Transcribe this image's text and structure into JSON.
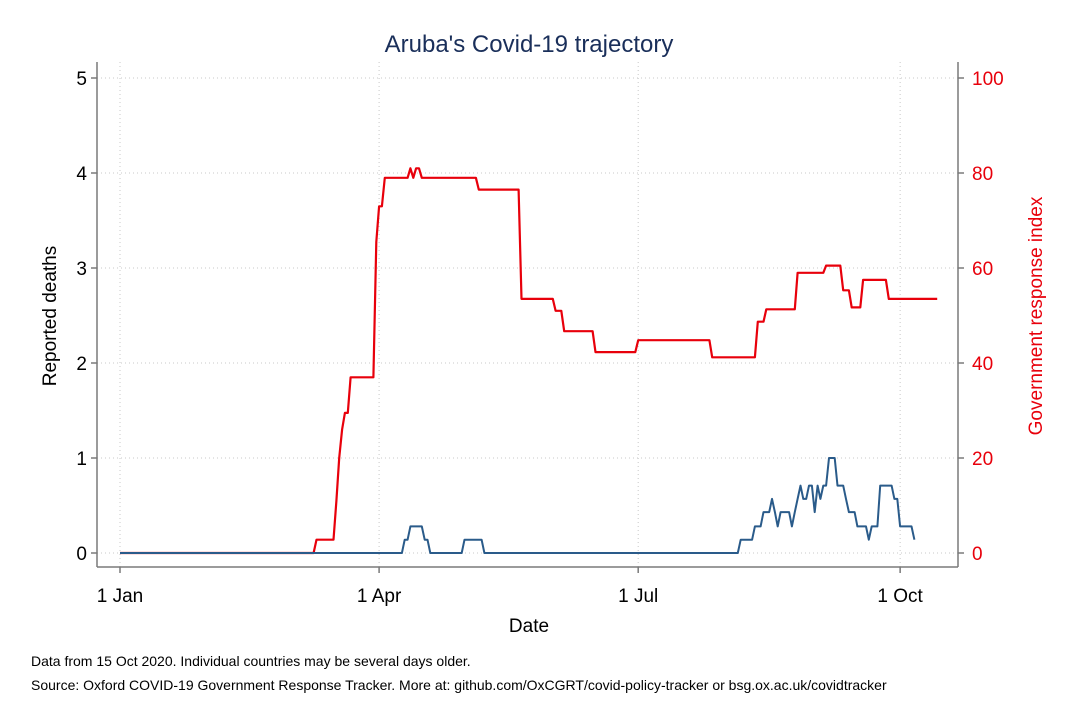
{
  "chart_data": {
    "type": "line",
    "title": "Aruba's Covid-19 trajectory",
    "xlabel": "Date",
    "ylabel": "Reported deaths",
    "y2label": "Government response index",
    "x_ticks": [
      "1 Jan",
      "1 Apr",
      "1 Jul",
      "1 Oct"
    ],
    "y_ticks": [
      "0",
      "1",
      "2",
      "3",
      "4",
      "5"
    ],
    "y2_ticks": [
      "0",
      "20",
      "40",
      "60",
      "80",
      "100"
    ],
    "xlim": [
      "2020-01-01",
      "2020-10-15"
    ],
    "ylim": [
      0,
      5
    ],
    "y2lim": [
      0,
      100
    ],
    "grid": true,
    "colors": {
      "deaths": "#2a5b8a",
      "response": "#e8000b",
      "title": "#1a2f5a"
    },
    "series": [
      {
        "axis": "right",
        "points": [
          [
            "2020-01-01",
            0
          ],
          [
            "2020-03-09",
            0
          ],
          [
            "2020-03-10",
            2.8
          ],
          [
            "2020-03-16",
            2.8
          ],
          [
            "2020-03-17",
            11
          ],
          [
            "2020-03-18",
            20
          ],
          [
            "2020-03-19",
            26
          ],
          [
            "2020-03-20",
            29.5
          ],
          [
            "2020-03-21",
            29.5
          ],
          [
            "2020-03-22",
            37
          ],
          [
            "2020-03-30",
            37
          ],
          [
            "2020-03-31",
            65.5
          ],
          [
            "2020-04-01",
            73
          ],
          [
            "2020-04-02",
            73
          ],
          [
            "2020-04-03",
            79
          ],
          [
            "2020-04-11",
            79
          ],
          [
            "2020-04-12",
            81
          ],
          [
            "2020-04-13",
            79
          ],
          [
            "2020-04-14",
            81
          ],
          [
            "2020-04-15",
            81
          ],
          [
            "2020-04-16",
            79
          ],
          [
            "2020-05-05",
            79
          ],
          [
            "2020-05-06",
            76.5
          ],
          [
            "2020-05-20",
            76.5
          ],
          [
            "2020-05-21",
            53.5
          ],
          [
            "2020-06-01",
            53.5
          ],
          [
            "2020-06-02",
            51
          ],
          [
            "2020-06-04",
            51
          ],
          [
            "2020-06-05",
            46.7
          ],
          [
            "2020-06-15",
            46.7
          ],
          [
            "2020-06-16",
            42.3
          ],
          [
            "2020-06-30",
            42.3
          ],
          [
            "2020-07-01",
            44.8
          ],
          [
            "2020-07-26",
            44.8
          ],
          [
            "2020-07-27",
            41.2
          ],
          [
            "2020-08-11",
            41.2
          ],
          [
            "2020-08-12",
            48.7
          ],
          [
            "2020-08-14",
            48.7
          ],
          [
            "2020-08-15",
            51.3
          ],
          [
            "2020-08-25",
            51.3
          ],
          [
            "2020-08-26",
            59
          ],
          [
            "2020-09-04",
            59
          ],
          [
            "2020-09-05",
            60.5
          ],
          [
            "2020-09-10",
            60.5
          ],
          [
            "2020-09-11",
            55.3
          ],
          [
            "2020-09-13",
            55.3
          ],
          [
            "2020-09-14",
            51.7
          ],
          [
            "2020-09-17",
            51.7
          ],
          [
            "2020-09-18",
            57.5
          ],
          [
            "2020-09-26",
            57.5
          ],
          [
            "2020-09-27",
            53.5
          ],
          [
            "2020-10-14",
            53.5
          ]
        ]
      },
      {
        "axis": "left",
        "points": [
          [
            "2020-01-01",
            0
          ],
          [
            "2020-04-09",
            0
          ],
          [
            "2020-04-10",
            0.14
          ],
          [
            "2020-04-11",
            0.14
          ],
          [
            "2020-04-12",
            0.28
          ],
          [
            "2020-04-16",
            0.28
          ],
          [
            "2020-04-17",
            0.14
          ],
          [
            "2020-04-18",
            0.14
          ],
          [
            "2020-04-19",
            0
          ],
          [
            "2020-04-30",
            0
          ],
          [
            "2020-05-01",
            0.14
          ],
          [
            "2020-05-07",
            0.14
          ],
          [
            "2020-05-08",
            0
          ],
          [
            "2020-08-05",
            0
          ],
          [
            "2020-08-06",
            0.14
          ],
          [
            "2020-08-10",
            0.14
          ],
          [
            "2020-08-11",
            0.28
          ],
          [
            "2020-08-13",
            0.28
          ],
          [
            "2020-08-14",
            0.43
          ],
          [
            "2020-08-16",
            0.43
          ],
          [
            "2020-08-17",
            0.57
          ],
          [
            "2020-08-18",
            0.43
          ],
          [
            "2020-08-19",
            0.28
          ],
          [
            "2020-08-20",
            0.43
          ],
          [
            "2020-08-23",
            0.43
          ],
          [
            "2020-08-24",
            0.28
          ],
          [
            "2020-08-25",
            0.43
          ],
          [
            "2020-08-26",
            0.57
          ],
          [
            "2020-08-27",
            0.71
          ],
          [
            "2020-08-28",
            0.57
          ],
          [
            "2020-08-29",
            0.57
          ],
          [
            "2020-08-30",
            0.71
          ],
          [
            "2020-08-31",
            0.71
          ],
          [
            "2020-09-01",
            0.43
          ],
          [
            "2020-09-02",
            0.71
          ],
          [
            "2020-09-03",
            0.57
          ],
          [
            "2020-09-04",
            0.71
          ],
          [
            "2020-09-05",
            0.71
          ],
          [
            "2020-09-06",
            1.0
          ],
          [
            "2020-09-08",
            1.0
          ],
          [
            "2020-09-09",
            0.71
          ],
          [
            "2020-09-11",
            0.71
          ],
          [
            "2020-09-12",
            0.57
          ],
          [
            "2020-09-13",
            0.43
          ],
          [
            "2020-09-15",
            0.43
          ],
          [
            "2020-09-16",
            0.28
          ],
          [
            "2020-09-19",
            0.28
          ],
          [
            "2020-09-20",
            0.14
          ],
          [
            "2020-09-21",
            0.28
          ],
          [
            "2020-09-23",
            0.28
          ],
          [
            "2020-09-24",
            0.71
          ],
          [
            "2020-09-28",
            0.71
          ],
          [
            "2020-09-29",
            0.57
          ],
          [
            "2020-09-30",
            0.57
          ],
          [
            "2020-10-01",
            0.28
          ],
          [
            "2020-10-05",
            0.28
          ],
          [
            "2020-10-06",
            0.14
          ]
        ]
      }
    ]
  },
  "footer": {
    "note1": "Data from 15 Oct 2020. Individual countries may be several days older.",
    "note2": "Source: Oxford COVID-19 Government Response Tracker. More at: github.com/OxCGRT/covid-policy-tracker or bsg.ox.ac.uk/covidtracker"
  }
}
